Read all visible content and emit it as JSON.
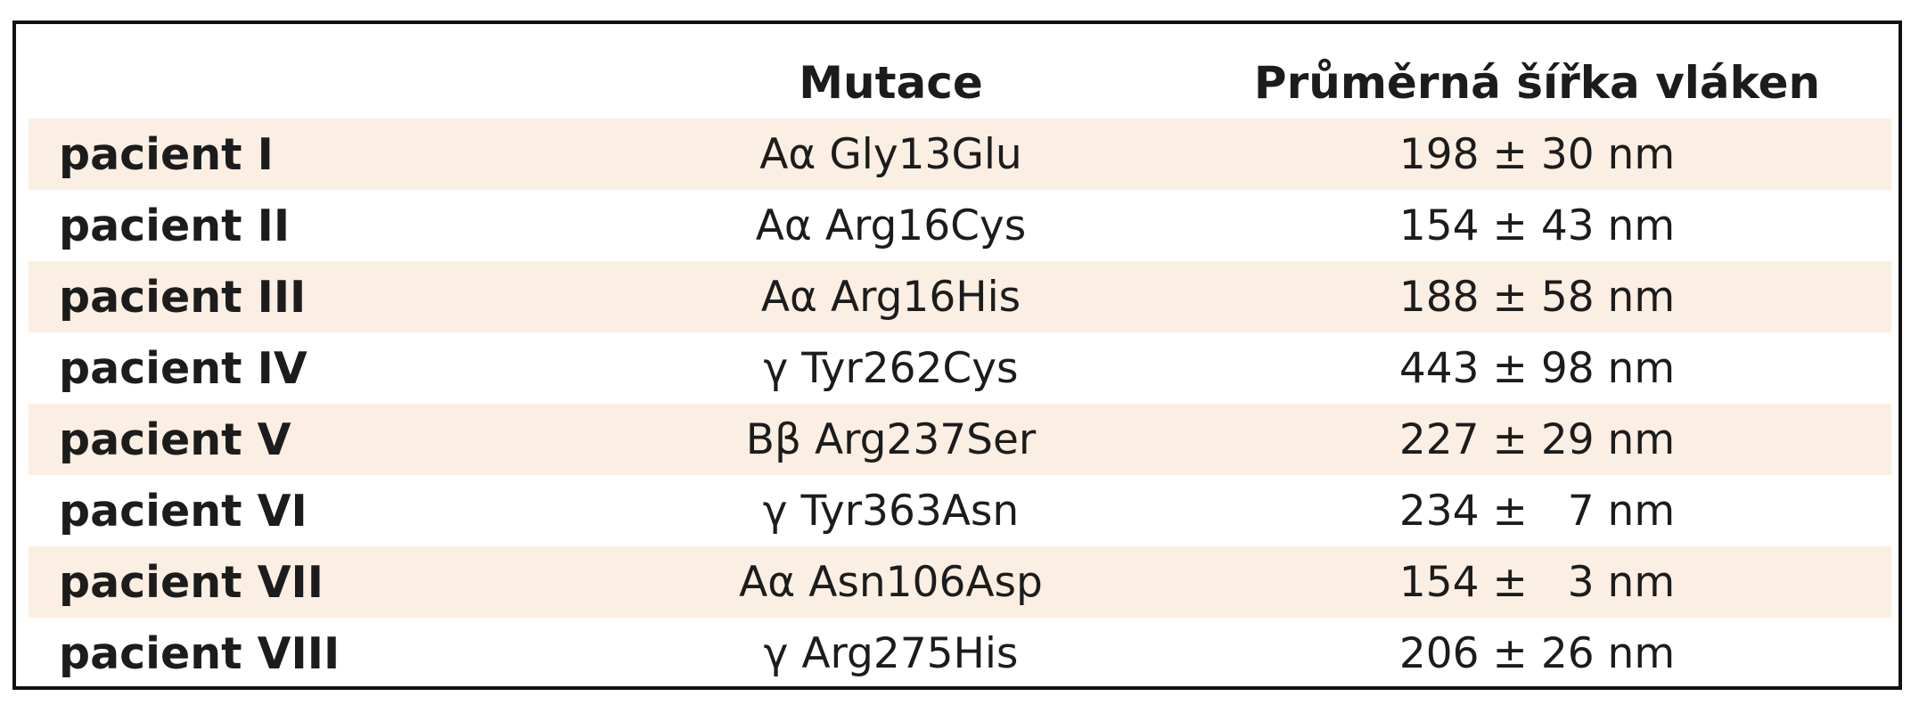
{
  "table": {
    "headers": [
      "",
      "Mutace",
      "Průměrná šířka vláken"
    ],
    "rows": [
      {
        "patient": "pacient I",
        "mutation": "Aα Gly13Glu",
        "width": "198 ± 30 nm"
      },
      {
        "patient": "pacient II",
        "mutation": "Aα Arg16Cys",
        "width": "154 ± 43 nm"
      },
      {
        "patient": "pacient III",
        "mutation": "Aα Arg16His",
        "width": "188 ± 58 nm"
      },
      {
        "patient": "pacient IV",
        "mutation": "γ Tyr262Cys",
        "width": "443 ± 98 nm"
      },
      {
        "patient": "pacient V",
        "mutation": "Bβ Arg237Ser",
        "width": "227 ± 29 nm"
      },
      {
        "patient": "pacient VI",
        "mutation": "γ Tyr363Asn",
        "width": "234 ±   7 nm"
      },
      {
        "patient": "pacient VII",
        "mutation": "Aα Asn106Asp",
        "width": "154 ±   3 nm"
      },
      {
        "patient": "pacient VIII",
        "mutation": "γ Arg275His",
        "width": "206 ± 26 nm"
      }
    ]
  },
  "colors": {
    "stripe": "#fbeee2",
    "border": "#111111",
    "text": "#1c1c1c"
  }
}
